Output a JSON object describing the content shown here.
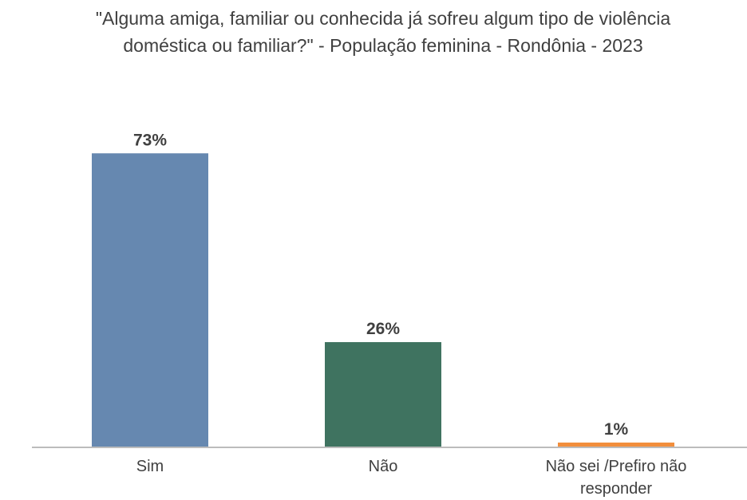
{
  "chart_data": {
    "type": "bar",
    "title": "\"Alguma amiga, familiar ou conhecida já sofreu algum tipo de violência doméstica ou familiar?\" - População feminina - Rondônia - 2023",
    "categories": [
      "Sim",
      "Não",
      "Não sei /Prefiro não responder"
    ],
    "values": [
      73,
      26,
      1
    ],
    "value_labels": [
      "73%",
      "26%",
      "1%"
    ],
    "colors": [
      "#6688b0",
      "#3f7360",
      "#f28e3c"
    ],
    "ylim": [
      0,
      80
    ]
  }
}
